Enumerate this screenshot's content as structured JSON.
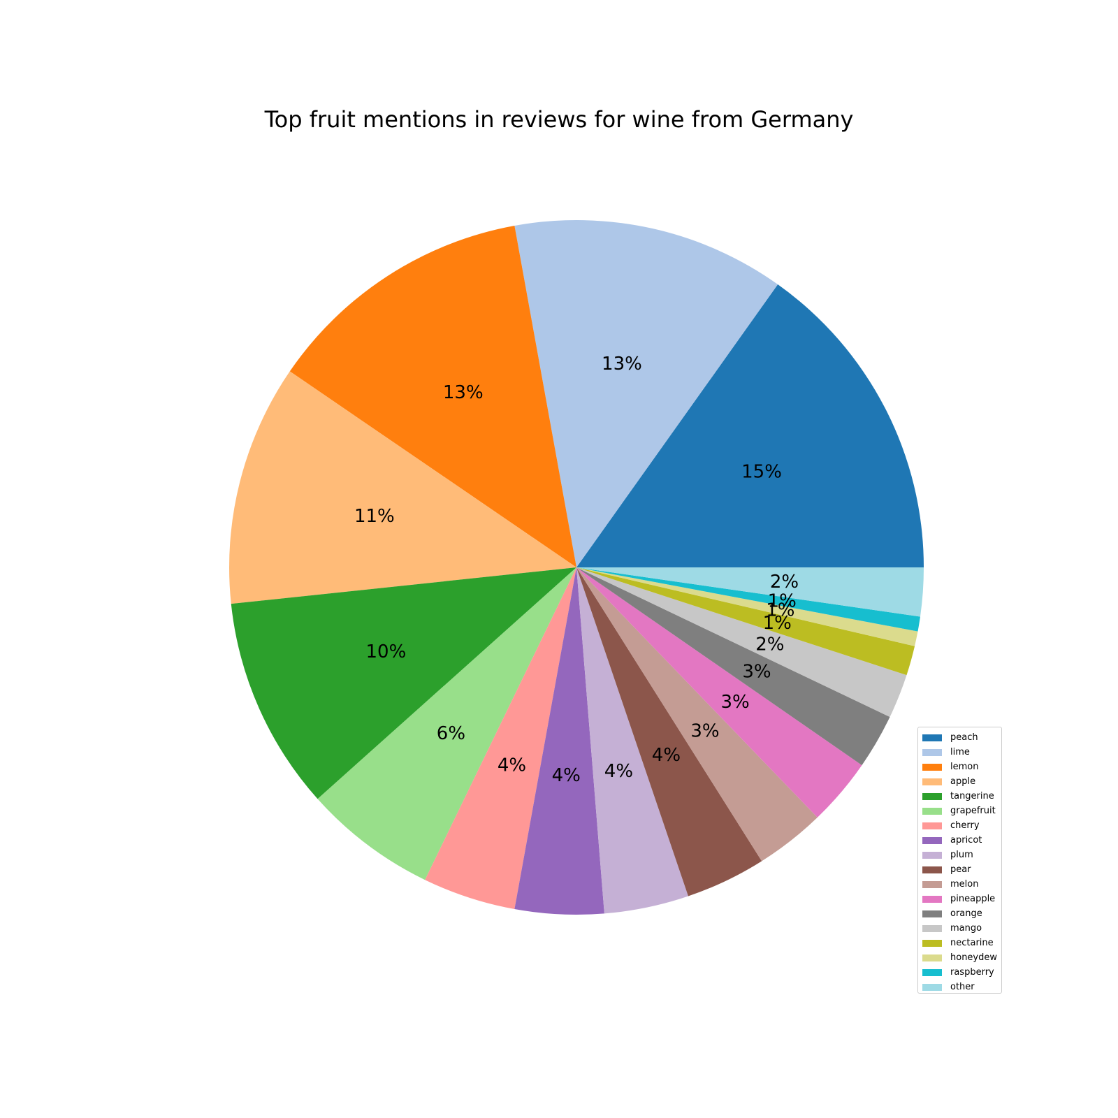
{
  "chart_data": {
    "type": "pie",
    "title": "Top fruit mentions in reviews for wine from Germany",
    "start_angle_deg": 0,
    "direction": "counterclockwise",
    "legend_placement": "lower-right",
    "slices": [
      {
        "label": "peach",
        "value": 15.4,
        "pct_label": "15%",
        "color": "#1f77b4"
      },
      {
        "label": "lime",
        "value": 12.9,
        "pct_label": "13%",
        "color": "#aec7e8"
      },
      {
        "label": "lemon",
        "value": 12.8,
        "pct_label": "13%",
        "color": "#ff7f0e"
      },
      {
        "label": "apple",
        "value": 11.4,
        "pct_label": "11%",
        "color": "#ffbb78"
      },
      {
        "label": "tangerine",
        "value": 10.1,
        "pct_label": "10%",
        "color": "#2ca02c"
      },
      {
        "label": "grapefruit",
        "value": 6.3,
        "pct_label": "6%",
        "color": "#98df8a"
      },
      {
        "label": "cherry",
        "value": 4.4,
        "pct_label": "4%",
        "color": "#ff9896"
      },
      {
        "label": "apricot",
        "value": 4.2,
        "pct_label": "4%",
        "color": "#9467bd"
      },
      {
        "label": "plum",
        "value": 4.0,
        "pct_label": "4%",
        "color": "#c5b0d5"
      },
      {
        "label": "pear",
        "value": 3.8,
        "pct_label": "4%",
        "color": "#8c564b"
      },
      {
        "label": "melon",
        "value": 3.3,
        "pct_label": "3%",
        "color": "#c49c94"
      },
      {
        "label": "pineapple",
        "value": 3.2,
        "pct_label": "3%",
        "color": "#e377c2"
      },
      {
        "label": "orange",
        "value": 2.6,
        "pct_label": "3%",
        "color": "#7f7f7f"
      },
      {
        "label": "mango",
        "value": 2.1,
        "pct_label": "2%",
        "color": "#c7c7c7"
      },
      {
        "label": "nectarine",
        "value": 1.4,
        "pct_label": "1%",
        "color": "#bcbd22"
      },
      {
        "label": "honeydew",
        "value": 0.7,
        "pct_label": "1%",
        "color": "#dbdb8d"
      },
      {
        "label": "raspberry",
        "value": 0.7,
        "pct_label": "1%",
        "color": "#17becf"
      },
      {
        "label": "other",
        "value": 2.3,
        "pct_label": "2%",
        "color": "#9edae5"
      }
    ]
  }
}
